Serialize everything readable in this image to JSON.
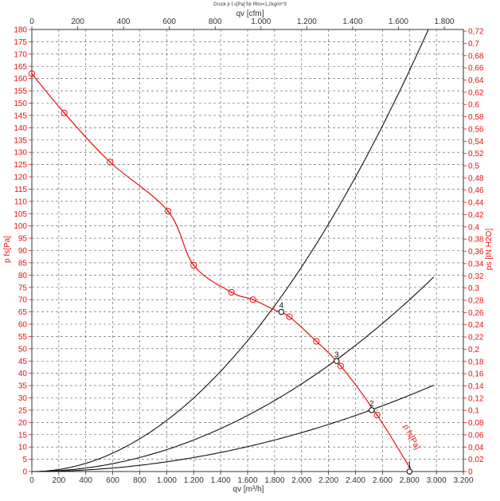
{
  "chart_data": {
    "type": "line",
    "title": "Druck p f.s[Pa] für Rho=1,2kg/m^3",
    "xlabel": "qv [m³/h]",
    "x2label": "qv [cfm]",
    "ylabel": "p  fs[Pa]",
    "y2label": "ps [IN H2O]",
    "xlim": [
      0,
      3200
    ],
    "x2lim": [
      0,
      1883.4
    ],
    "ylim": [
      0,
      180
    ],
    "y2lim": [
      0,
      0.7227
    ],
    "x_ticks": [
      0,
      200,
      400,
      600,
      800,
      1000,
      1200,
      1400,
      1600,
      1800,
      2000,
      2200,
      2400,
      2600,
      2800,
      3000,
      3200
    ],
    "x_tick_labels": [
      "0",
      "200",
      "400",
      "600",
      "800",
      "1.000",
      "1.200",
      "1.400",
      "1.600",
      "1.800",
      "2.000",
      "2.200",
      "2.400",
      "2.600",
      "2.800",
      "3.000",
      "3.200"
    ],
    "x2_ticks": [
      0,
      200,
      400,
      600,
      800,
      1000,
      1200,
      1400,
      1600,
      1800
    ],
    "x2_tick_labels": [
      "0",
      "200",
      "400",
      "600",
      "800",
      "1.000",
      "1.200",
      "1.400",
      "1.600",
      "1.800"
    ],
    "y_ticks": [
      0,
      5,
      10,
      15,
      20,
      25,
      30,
      35,
      40,
      45,
      50,
      55,
      60,
      65,
      70,
      75,
      80,
      85,
      90,
      95,
      100,
      105,
      110,
      115,
      120,
      125,
      130,
      135,
      140,
      145,
      150,
      155,
      160,
      165,
      170,
      175,
      180
    ],
    "y2_ticks": [
      0,
      0.02,
      0.04,
      0.06,
      0.08,
      0.1,
      0.12,
      0.14,
      0.16,
      0.18,
      0.2,
      0.22,
      0.24,
      0.26,
      0.28,
      0.3,
      0.32,
      0.34,
      0.36,
      0.38,
      0.4,
      0.42,
      0.44,
      0.46,
      0.48,
      0.5,
      0.52,
      0.54,
      0.56,
      0.58,
      0.6,
      0.62,
      0.64,
      0.66,
      0.68,
      0.7,
      0.72
    ],
    "y2_tick_labels": [
      "0",
      "0,02",
      "0,04",
      "0,06",
      "0,08",
      "0,1",
      "0,12",
      "0,14",
      "0,16",
      "0,18",
      "0,2",
      "0,22",
      "0,24",
      "0,26",
      "0,28",
      "0,3",
      "0,32",
      "0,34",
      "0,36",
      "0,38",
      "0,4",
      "0,42",
      "0,44",
      "0,46",
      "0,48",
      "0,5",
      "0,52",
      "0,54",
      "0,56",
      "0,58",
      "0,6",
      "0,62",
      "0,64",
      "0,66",
      "0,68",
      "0,7",
      "0,72"
    ],
    "grid": true,
    "fan_curve": {
      "label": "p  fs[Pa]",
      "color": "#e8100f",
      "x": [
        0,
        240,
        580,
        1010,
        1200,
        1480,
        1640,
        1810,
        1910,
        2110,
        2290,
        2560,
        2820
      ],
      "y": [
        162,
        146,
        126,
        106,
        84,
        73,
        70,
        65.5,
        63,
        53,
        43,
        23,
        0
      ],
      "markers_x": [
        0,
        240,
        580,
        1010,
        1200,
        1480,
        1640,
        1910,
        2110,
        2290,
        2560
      ],
      "markers_y": [
        162,
        146,
        126,
        106,
        84,
        73,
        70,
        63,
        53,
        43,
        23
      ]
    },
    "system_curves": [
      {
        "color": "#111111",
        "k": 20.82,
        "xmax": 2940
      },
      {
        "color": "#111111",
        "k": 8.92,
        "xmax": 2980
      },
      {
        "color": "#111111",
        "k": 3.96,
        "xmax": 2990
      }
    ],
    "operating_points": [
      {
        "label": "4",
        "x": 1850,
        "y": 65
      },
      {
        "label": "3",
        "x": 2260,
        "y": 45
      },
      {
        "label": "2",
        "x": 2520,
        "y": 25
      },
      {
        "label": "1",
        "x": 2800,
        "y": 0
      }
    ]
  }
}
